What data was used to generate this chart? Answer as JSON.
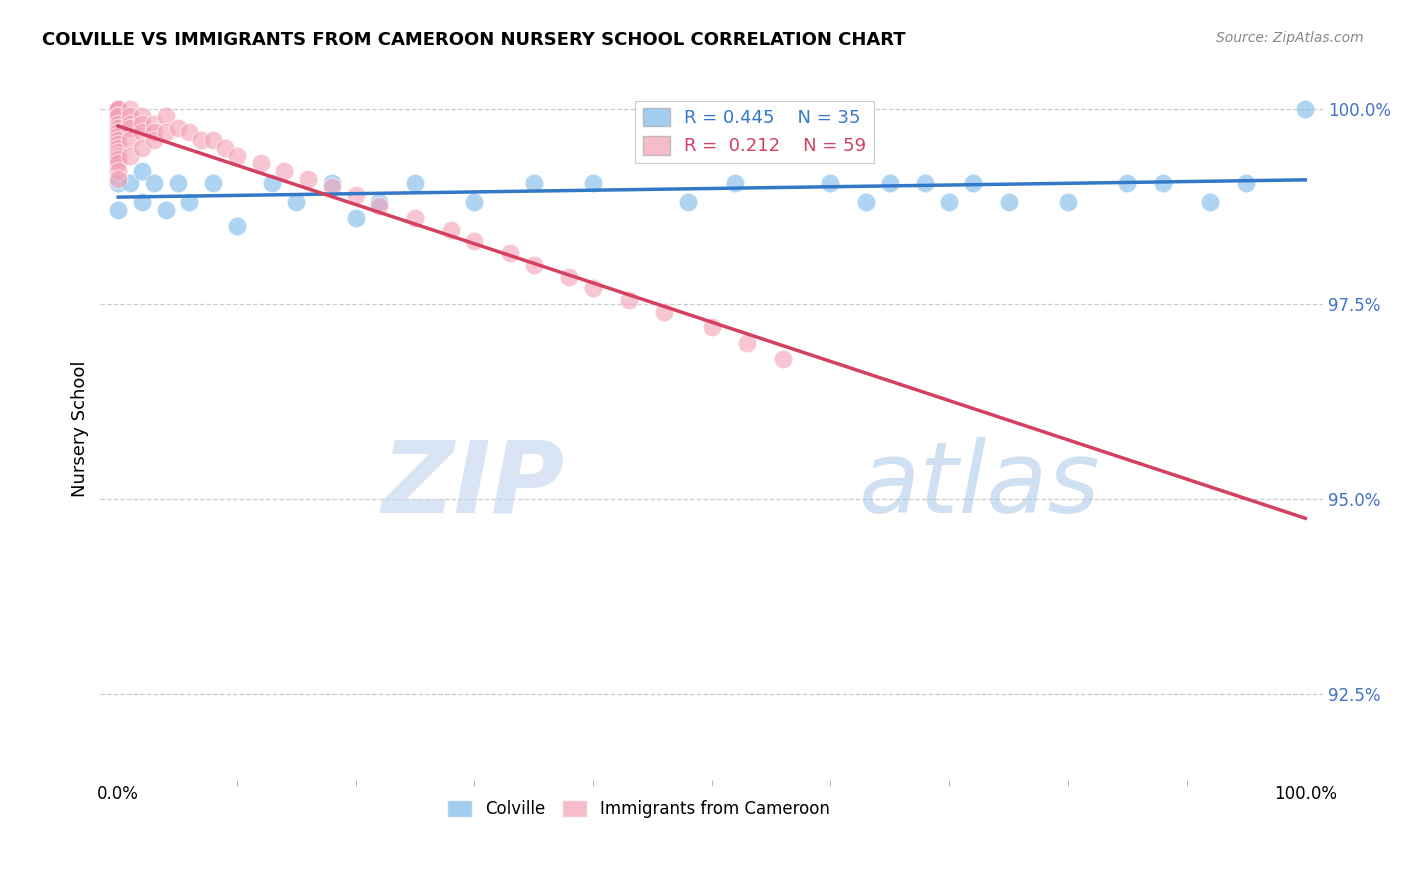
{
  "title": "COLVILLE VS IMMIGRANTS FROM CAMEROON NURSERY SCHOOL CORRELATION CHART",
  "source": "Source: ZipAtlas.com",
  "ylabel": "Nursery School",
  "legend_blue_r": "0.445",
  "legend_blue_n": "35",
  "legend_pink_r": "0.212",
  "legend_pink_n": "59",
  "blue_color": "#7ab8e8",
  "pink_color": "#f4a0b5",
  "blue_line_color": "#3478c8",
  "pink_line_color": "#d44060",
  "ytick_labels": [
    "92.5%",
    "95.0%",
    "97.5%",
    "100.0%"
  ],
  "ytick_vals": [
    0.925,
    0.95,
    0.975,
    1.0
  ],
  "xtick_labels": [
    "0.0%",
    "100.0%"
  ],
  "watermark_zip": "ZIP",
  "watermark_atlas": "atlas",
  "background_color": "#ffffff",
  "grid_color": "#cccccc",
  "blue_scatter_x": [
    0.0,
    0.0,
    0.01,
    0.02,
    0.02,
    0.03,
    0.04,
    0.05,
    0.06,
    0.08,
    0.1,
    0.13,
    0.15,
    0.18,
    0.2,
    0.22,
    0.25,
    0.35,
    0.4,
    0.48,
    0.52,
    0.6,
    0.63,
    0.65,
    0.68,
    0.7,
    0.72,
    0.75,
    0.8,
    0.85,
    0.88,
    0.92,
    0.95,
    1.0,
    0.3
  ],
  "blue_scatter_y": [
    0.9905,
    0.987,
    0.9905,
    0.988,
    0.992,
    0.9905,
    0.987,
    0.9905,
    0.988,
    0.9905,
    0.985,
    0.9905,
    0.988,
    0.9905,
    0.986,
    0.988,
    0.9905,
    0.9905,
    0.9905,
    0.988,
    0.9905,
    0.9905,
    0.988,
    0.9905,
    0.9905,
    0.988,
    0.9905,
    0.988,
    0.988,
    0.9905,
    0.9905,
    0.988,
    0.9905,
    1.0,
    0.988
  ],
  "pink_scatter_x": [
    0.0,
    0.0,
    0.0,
    0.0,
    0.0,
    0.0,
    0.0,
    0.0,
    0.0,
    0.0,
    0.0,
    0.0,
    0.0,
    0.0,
    0.0,
    0.0,
    0.0,
    0.0,
    0.0,
    0.0,
    0.01,
    0.01,
    0.01,
    0.01,
    0.01,
    0.01,
    0.02,
    0.02,
    0.02,
    0.02,
    0.03,
    0.03,
    0.03,
    0.04,
    0.04,
    0.05,
    0.06,
    0.07,
    0.08,
    0.09,
    0.1,
    0.12,
    0.14,
    0.16,
    0.18,
    0.2,
    0.22,
    0.25,
    0.28,
    0.3,
    0.33,
    0.35,
    0.38,
    0.4,
    0.43,
    0.46,
    0.5,
    0.53,
    0.56
  ],
  "pink_scatter_y": [
    1.0,
    1.0,
    1.0,
    1.0,
    1.0,
    0.999,
    0.999,
    0.998,
    0.9975,
    0.997,
    0.9965,
    0.996,
    0.9955,
    0.995,
    0.9945,
    0.994,
    0.9935,
    0.993,
    0.992,
    0.991,
    1.0,
    0.999,
    0.998,
    0.9975,
    0.996,
    0.994,
    0.999,
    0.998,
    0.997,
    0.995,
    0.998,
    0.997,
    0.996,
    0.999,
    0.997,
    0.9975,
    0.997,
    0.996,
    0.996,
    0.995,
    0.994,
    0.993,
    0.992,
    0.991,
    0.99,
    0.989,
    0.9875,
    0.986,
    0.9845,
    0.983,
    0.9815,
    0.98,
    0.9785,
    0.977,
    0.9755,
    0.974,
    0.972,
    0.97,
    0.968
  ]
}
